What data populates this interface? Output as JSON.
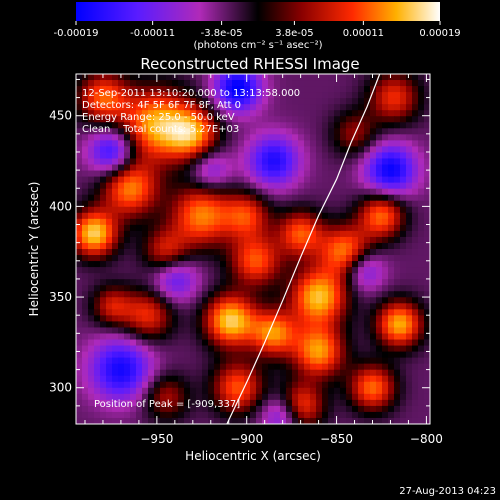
{
  "chart_data": {
    "type": "heatmap",
    "title": "Reconstructed RHESSI Image",
    "xlabel": "Heliocentric X (arcsec)",
    "ylabel": "Heliocentric Y (arcsec)",
    "xlim": [
      -995,
      -798
    ],
    "ylim": [
      280,
      473
    ],
    "xticks": [
      -950,
      -900,
      -850,
      -800
    ],
    "yticks": [
      300,
      350,
      400,
      450
    ],
    "annotation_lines": [
      "12-Sep-2011 13:10:20.000 to 13:13:58.000",
      "Detectors: 4F 5F 6F 7F 8F, Att 0",
      "Energy Range: 25.0 - 50.0 keV",
      "Clean    Total counts: 5.27E+03"
    ],
    "peak_label": "Position of Peak = [-909,337]",
    "peak": [
      -909,
      337
    ],
    "colorbar": {
      "tick_labels": [
        "-0.00019",
        "-0.00011",
        "-3.8e-05",
        "3.8e-05",
        "0.00011",
        "0.00019"
      ],
      "tick_values": [
        -0.00019,
        -0.00011,
        -3.8e-05,
        3.8e-05,
        0.00011,
        0.00019
      ],
      "range": [
        -0.00019,
        0.00019
      ],
      "units": "(photons cm⁻² s⁻¹ asec⁻²)"
    },
    "limb_curve": {
      "x": [
        -911,
        -900,
        -890,
        -880,
        -870,
        -860,
        -850,
        -842,
        -833,
        -826
      ],
      "y": [
        280,
        303,
        325,
        348,
        372,
        395,
        415,
        435,
        455,
        473
      ]
    },
    "sources": [
      {
        "x": -980,
        "y": 460,
        "amp": 0.7,
        "sigma": 10
      },
      {
        "x": -950,
        "y": 445,
        "amp": 0.9,
        "sigma": 14
      },
      {
        "x": -930,
        "y": 440,
        "amp": 0.75,
        "sigma": 10
      },
      {
        "x": -965,
        "y": 410,
        "amp": 0.8,
        "sigma": 11
      },
      {
        "x": -925,
        "y": 395,
        "amp": 0.8,
        "sigma": 12
      },
      {
        "x": -900,
        "y": 395,
        "amp": 0.6,
        "sigma": 9
      },
      {
        "x": -985,
        "y": 385,
        "amp": 1.0,
        "sigma": 9
      },
      {
        "x": -945,
        "y": 375,
        "amp": 0.55,
        "sigma": 9
      },
      {
        "x": -895,
        "y": 370,
        "amp": 0.7,
        "sigma": 10
      },
      {
        "x": -870,
        "y": 385,
        "amp": 0.7,
        "sigma": 9
      },
      {
        "x": -860,
        "y": 350,
        "amp": 0.95,
        "sigma": 11
      },
      {
        "x": -845,
        "y": 375,
        "amp": 0.8,
        "sigma": 10
      },
      {
        "x": -825,
        "y": 395,
        "amp": 0.75,
        "sigma": 9
      },
      {
        "x": -818,
        "y": 460,
        "amp": 0.6,
        "sigma": 10
      },
      {
        "x": -909,
        "y": 337,
        "amp": 1.0,
        "sigma": 10
      },
      {
        "x": -955,
        "y": 340,
        "amp": 0.6,
        "sigma": 10
      },
      {
        "x": -975,
        "y": 345,
        "amp": 0.5,
        "sigma": 8
      },
      {
        "x": -885,
        "y": 330,
        "amp": 0.8,
        "sigma": 9
      },
      {
        "x": -860,
        "y": 320,
        "amp": 0.85,
        "sigma": 10
      },
      {
        "x": -815,
        "y": 335,
        "amp": 0.9,
        "sigma": 9
      },
      {
        "x": -830,
        "y": 300,
        "amp": 0.75,
        "sigma": 9
      },
      {
        "x": -905,
        "y": 300,
        "amp": 0.7,
        "sigma": 10
      },
      {
        "x": -870,
        "y": 290,
        "amp": 0.7,
        "sigma": 9
      },
      {
        "x": -945,
        "y": 295,
        "amp": 0.45,
        "sigma": 9
      },
      {
        "x": -840,
        "y": 440,
        "amp": 0.4,
        "sigma": 9
      },
      {
        "x": -975,
        "y": 430,
        "amp": -0.7,
        "sigma": 9
      },
      {
        "x": -905,
        "y": 465,
        "amp": -0.85,
        "sigma": 9
      },
      {
        "x": -885,
        "y": 425,
        "amp": -0.7,
        "sigma": 10
      },
      {
        "x": -970,
        "y": 310,
        "amp": -0.75,
        "sigma": 12
      },
      {
        "x": -940,
        "y": 360,
        "amp": -0.5,
        "sigma": 9
      },
      {
        "x": -820,
        "y": 420,
        "amp": -0.8,
        "sigma": 10
      },
      {
        "x": -835,
        "y": 365,
        "amp": -0.5,
        "sigma": 8
      },
      {
        "x": -880,
        "y": 285,
        "amp": -0.5,
        "sigma": 8
      },
      {
        "x": -920,
        "y": 420,
        "amp": -0.4,
        "sigma": 8
      }
    ]
  },
  "timestamp": "27-Aug-2013 04:23"
}
